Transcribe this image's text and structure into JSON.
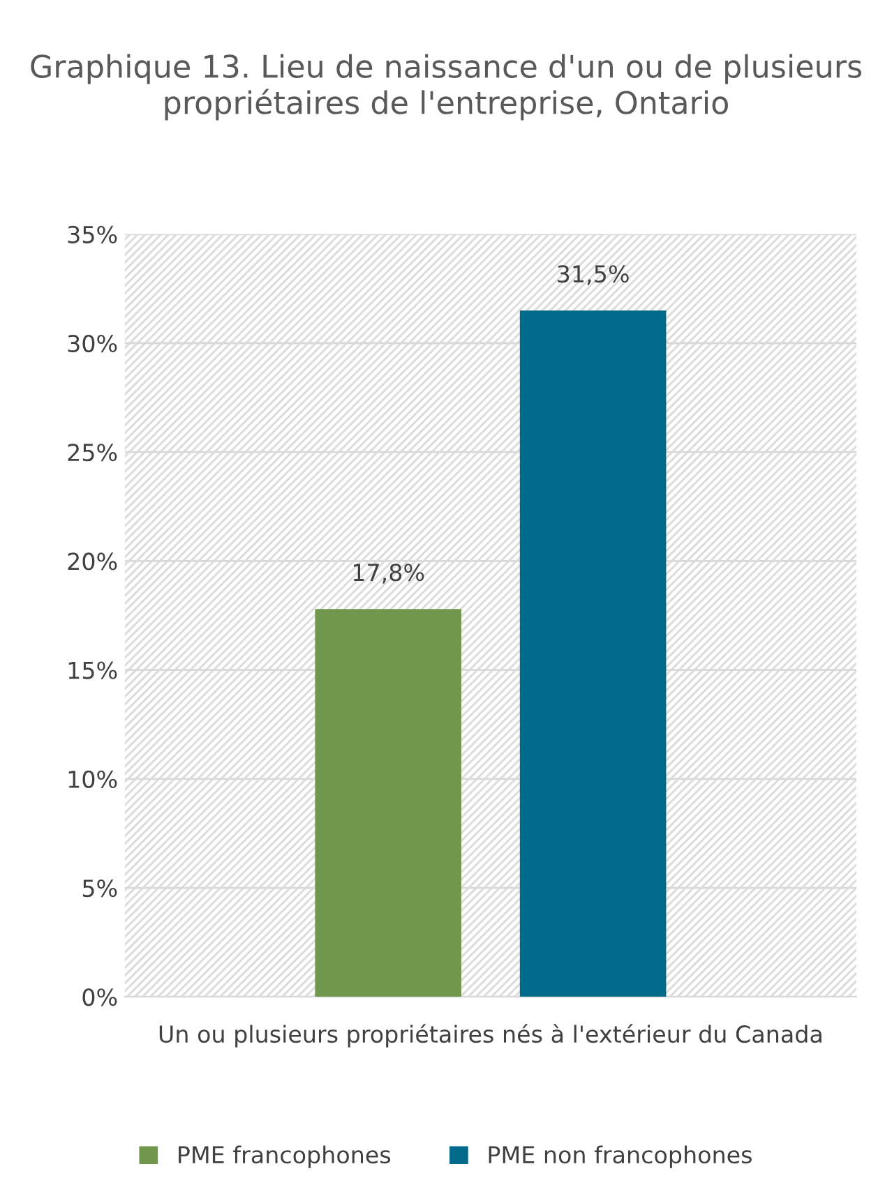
{
  "chart_data": {
    "type": "bar",
    "title": "Graphique 13. Lieu de naissance d'un ou de plusieurs propriétaires de l'entreprise, Ontario",
    "categories": [
      "Un ou plusieurs propriétaires nés à l'extérieur du Canada"
    ],
    "series": [
      {
        "name": "PME francophones",
        "color": "#70974b",
        "values": [
          17.8
        ],
        "value_labels": [
          "17,8%"
        ]
      },
      {
        "name": "PME non francophones",
        "color": "#006a8b",
        "values": [
          31.5
        ],
        "value_labels": [
          "31,5%"
        ]
      }
    ],
    "ylim": [
      0,
      35
    ],
    "yticks": [
      {
        "value": 0,
        "label": "0%"
      },
      {
        "value": 5,
        "label": "5%"
      },
      {
        "value": 10,
        "label": "10%"
      },
      {
        "value": 15,
        "label": "15%"
      },
      {
        "value": 20,
        "label": "20%"
      },
      {
        "value": 25,
        "label": "25%"
      },
      {
        "value": 30,
        "label": "30%"
      },
      {
        "value": 35,
        "label": "35%"
      }
    ],
    "grid": "y",
    "legend": "bottom"
  }
}
